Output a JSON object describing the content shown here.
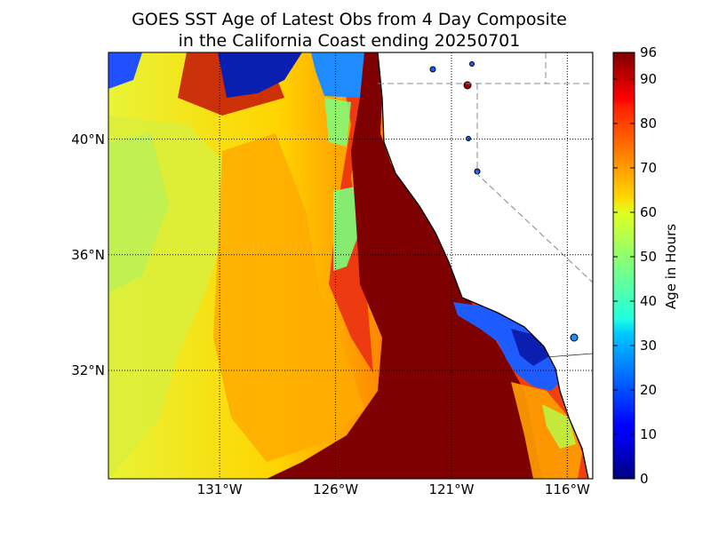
{
  "title": {
    "line1": "GOES SST Age of Latest Obs from 4 Day Composite",
    "line2": "in the California Coast ending 20250701"
  },
  "map": {
    "lat_ticks": [
      {
        "value": 40,
        "label": "40°N"
      },
      {
        "value": 36,
        "label": "36°N"
      },
      {
        "value": 32,
        "label": "32°N"
      }
    ],
    "lon_ticks": [
      {
        "value": -131,
        "label": "131°W"
      },
      {
        "value": -126,
        "label": "126°W"
      },
      {
        "value": -121,
        "label": "121°W"
      },
      {
        "value": -116,
        "label": "116°W"
      }
    ],
    "colors": {
      "land": "#ffffff",
      "ocean_far_west": "#e6f032",
      "ocean_mid": "#ff9a00",
      "ocean_offshore": "#ee3a10",
      "ocean_coastal": "#7f0000",
      "southern_bight": "#1e5cff",
      "north_patch": "#0a1fb0"
    }
  },
  "colorbar": {
    "title": "Age in Hours",
    "min": 0,
    "max": 96,
    "tick_labels": [
      "96",
      "90",
      "80",
      "70",
      "60",
      "50",
      "40",
      "30",
      "20",
      "10",
      "0"
    ],
    "tick_values": [
      96,
      90,
      80,
      70,
      60,
      50,
      40,
      30,
      20,
      10,
      0
    ],
    "colormap": "jet"
  }
}
